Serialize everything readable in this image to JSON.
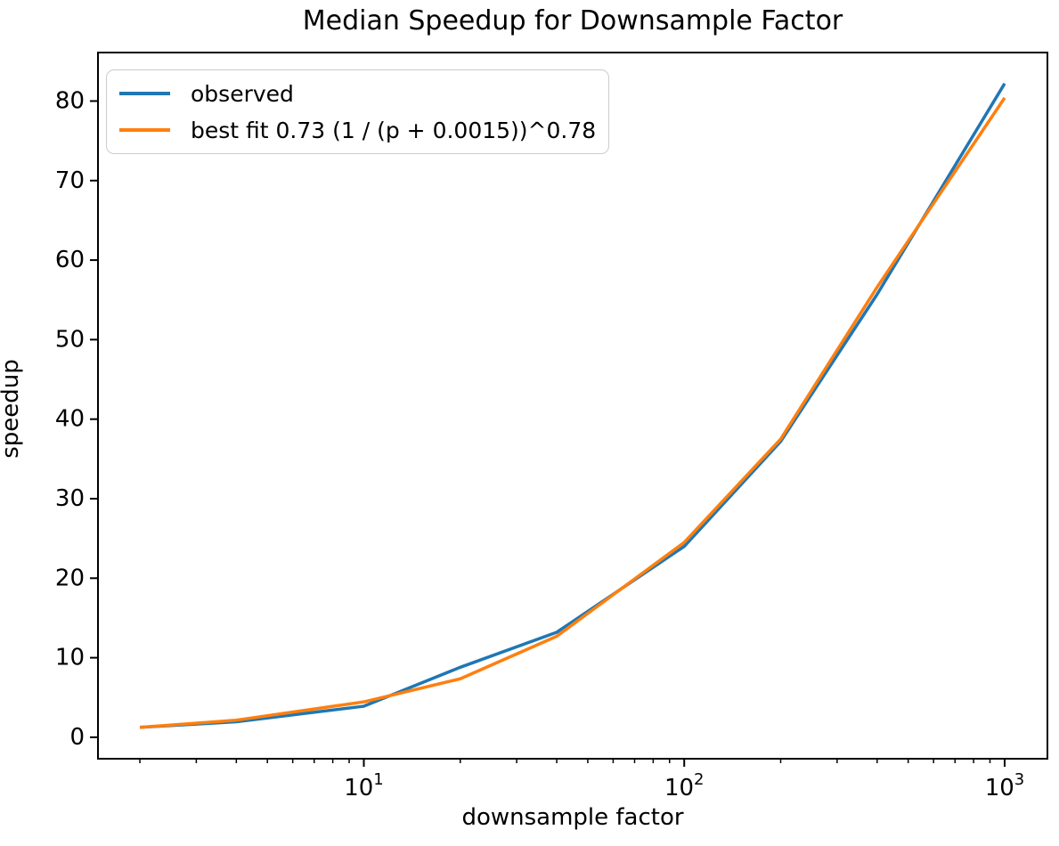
{
  "figure": {
    "background": "#ffffff",
    "text_color": "#000000",
    "spine_color": "#000000"
  },
  "chart_data": {
    "type": "line",
    "title": "Median Speedup for Downsample Factor",
    "xlabel": "downsample factor",
    "ylabel": "speedup",
    "xscale": "log",
    "yscale": "linear",
    "grid": false,
    "legend_position": "upper left",
    "xlim": [
      1.48,
      1360
    ],
    "ylim": [
      -2.7,
      86.1
    ],
    "x_major_ticks": [
      10,
      100,
      1000
    ],
    "y_ticks": [
      0,
      10,
      20,
      30,
      40,
      50,
      60,
      70,
      80
    ],
    "x": [
      2,
      4,
      10,
      20,
      40,
      100,
      200,
      400,
      1000
    ],
    "series": [
      {
        "name": "observed",
        "color": "#1f77b4",
        "values": [
          1.25,
          1.95,
          3.9,
          8.8,
          13.2,
          24.0,
          37.2,
          55.7,
          82.2
        ]
      },
      {
        "name": "best fit 0.73 (1 / (p + 0.0015))^0.78",
        "color": "#ff7f0e",
        "values": [
          1.25,
          2.15,
          4.45,
          7.35,
          12.7,
          24.5,
          37.5,
          56.6,
          80.4
        ]
      }
    ]
  },
  "legend": {
    "border_color": "#cccccc",
    "background": "rgba(255,255,255,0.8)"
  }
}
